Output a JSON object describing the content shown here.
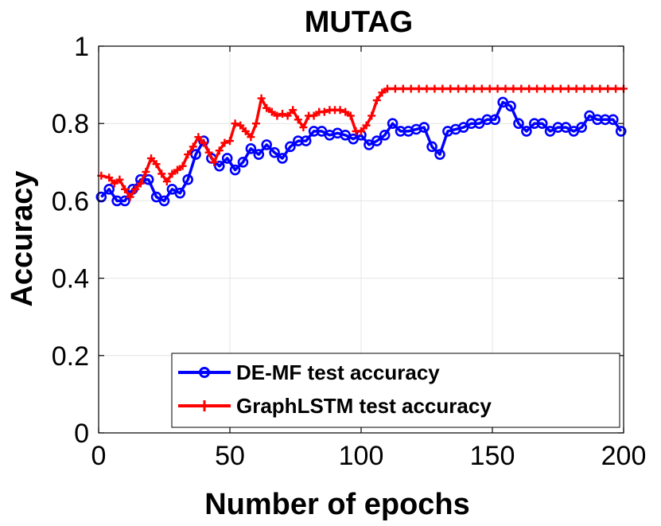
{
  "chart_data": {
    "type": "line",
    "title": "MUTAG",
    "xlabel": "Number of epochs",
    "ylabel": "Accuracy",
    "xlim": [
      0,
      200
    ],
    "ylim": [
      0,
      1
    ],
    "xticks": [
      0,
      50,
      100,
      150,
      200
    ],
    "yticks": [
      0,
      0.2,
      0.4,
      0.6,
      0.8,
      1
    ],
    "xtick_labels": [
      "0",
      "50",
      "100",
      "150",
      "200"
    ],
    "ytick_labels": [
      "0",
      "0.2",
      "0.4",
      "0.6",
      "0.8",
      "1"
    ],
    "grid": true,
    "legend_position": "bottom-right",
    "series": [
      {
        "name": "DE-MF test accuracy",
        "color": "#0000ff",
        "marker": "circle",
        "points": [
          [
            1,
            0.61
          ],
          [
            4,
            0.63
          ],
          [
            7,
            0.6
          ],
          [
            10,
            0.6
          ],
          [
            13,
            0.63
          ],
          [
            16,
            0.655
          ],
          [
            19,
            0.655
          ],
          [
            22,
            0.61
          ],
          [
            25,
            0.6
          ],
          [
            28,
            0.63
          ],
          [
            31,
            0.62
          ],
          [
            34,
            0.655
          ],
          [
            37,
            0.72
          ],
          [
            40,
            0.755
          ],
          [
            43,
            0.71
          ],
          [
            46,
            0.69
          ],
          [
            49,
            0.71
          ],
          [
            52,
            0.68
          ],
          [
            55,
            0.7
          ],
          [
            58,
            0.735
          ],
          [
            61,
            0.72
          ],
          [
            64,
            0.745
          ],
          [
            67,
            0.725
          ],
          [
            70,
            0.71
          ],
          [
            73,
            0.74
          ],
          [
            76,
            0.755
          ],
          [
            79,
            0.755
          ],
          [
            82,
            0.78
          ],
          [
            85,
            0.78
          ],
          [
            88,
            0.77
          ],
          [
            91,
            0.775
          ],
          [
            94,
            0.77
          ],
          [
            97,
            0.76
          ],
          [
            100,
            0.77
          ],
          [
            103,
            0.745
          ],
          [
            106,
            0.755
          ],
          [
            109,
            0.77
          ],
          [
            112,
            0.8
          ],
          [
            115,
            0.78
          ],
          [
            118,
            0.78
          ],
          [
            121,
            0.785
          ],
          [
            124,
            0.79
          ],
          [
            127,
            0.74
          ],
          [
            130,
            0.72
          ],
          [
            133,
            0.78
          ],
          [
            136,
            0.785
          ],
          [
            139,
            0.79
          ],
          [
            142,
            0.8
          ],
          [
            145,
            0.8
          ],
          [
            148,
            0.81
          ],
          [
            151,
            0.81
          ],
          [
            154,
            0.855
          ],
          [
            157,
            0.845
          ],
          [
            160,
            0.8
          ],
          [
            163,
            0.78
          ],
          [
            166,
            0.8
          ],
          [
            169,
            0.8
          ],
          [
            172,
            0.78
          ],
          [
            175,
            0.79
          ],
          [
            178,
            0.79
          ],
          [
            181,
            0.78
          ],
          [
            184,
            0.79
          ],
          [
            187,
            0.82
          ],
          [
            190,
            0.81
          ],
          [
            193,
            0.81
          ],
          [
            196,
            0.81
          ],
          [
            199,
            0.78
          ]
        ]
      },
      {
        "name": "GraphLSTM test accuracy",
        "color": "#ff0000",
        "marker": "plus",
        "points": [
          [
            1,
            0.665
          ],
          [
            4,
            0.66
          ],
          [
            6,
            0.645
          ],
          [
            8,
            0.655
          ],
          [
            10,
            0.63
          ],
          [
            12,
            0.61
          ],
          [
            14,
            0.63
          ],
          [
            16,
            0.645
          ],
          [
            18,
            0.675
          ],
          [
            20,
            0.71
          ],
          [
            22,
            0.695
          ],
          [
            24,
            0.67
          ],
          [
            26,
            0.65
          ],
          [
            28,
            0.67
          ],
          [
            30,
            0.68
          ],
          [
            32,
            0.69
          ],
          [
            34,
            0.72
          ],
          [
            36,
            0.74
          ],
          [
            38,
            0.765
          ],
          [
            40,
            0.75
          ],
          [
            42,
            0.725
          ],
          [
            44,
            0.7
          ],
          [
            46,
            0.73
          ],
          [
            48,
            0.75
          ],
          [
            50,
            0.755
          ],
          [
            52,
            0.8
          ],
          [
            54,
            0.795
          ],
          [
            56,
            0.78
          ],
          [
            58,
            0.765
          ],
          [
            60,
            0.8
          ],
          [
            62,
            0.865
          ],
          [
            64,
            0.84
          ],
          [
            66,
            0.83
          ],
          [
            68,
            0.82
          ],
          [
            70,
            0.825
          ],
          [
            72,
            0.82
          ],
          [
            74,
            0.835
          ],
          [
            76,
            0.81
          ],
          [
            78,
            0.79
          ],
          [
            80,
            0.82
          ],
          [
            82,
            0.82
          ],
          [
            84,
            0.83
          ],
          [
            86,
            0.83
          ],
          [
            88,
            0.835
          ],
          [
            90,
            0.835
          ],
          [
            92,
            0.835
          ],
          [
            94,
            0.83
          ],
          [
            96,
            0.82
          ],
          [
            98,
            0.78
          ],
          [
            100,
            0.78
          ],
          [
            102,
            0.795
          ],
          [
            104,
            0.82
          ],
          [
            106,
            0.86
          ],
          [
            108,
            0.88
          ],
          [
            110,
            0.89
          ],
          [
            200,
            0.89
          ]
        ],
        "plateau_markers_from": 110,
        "plateau_markers_step": 3
      }
    ]
  }
}
